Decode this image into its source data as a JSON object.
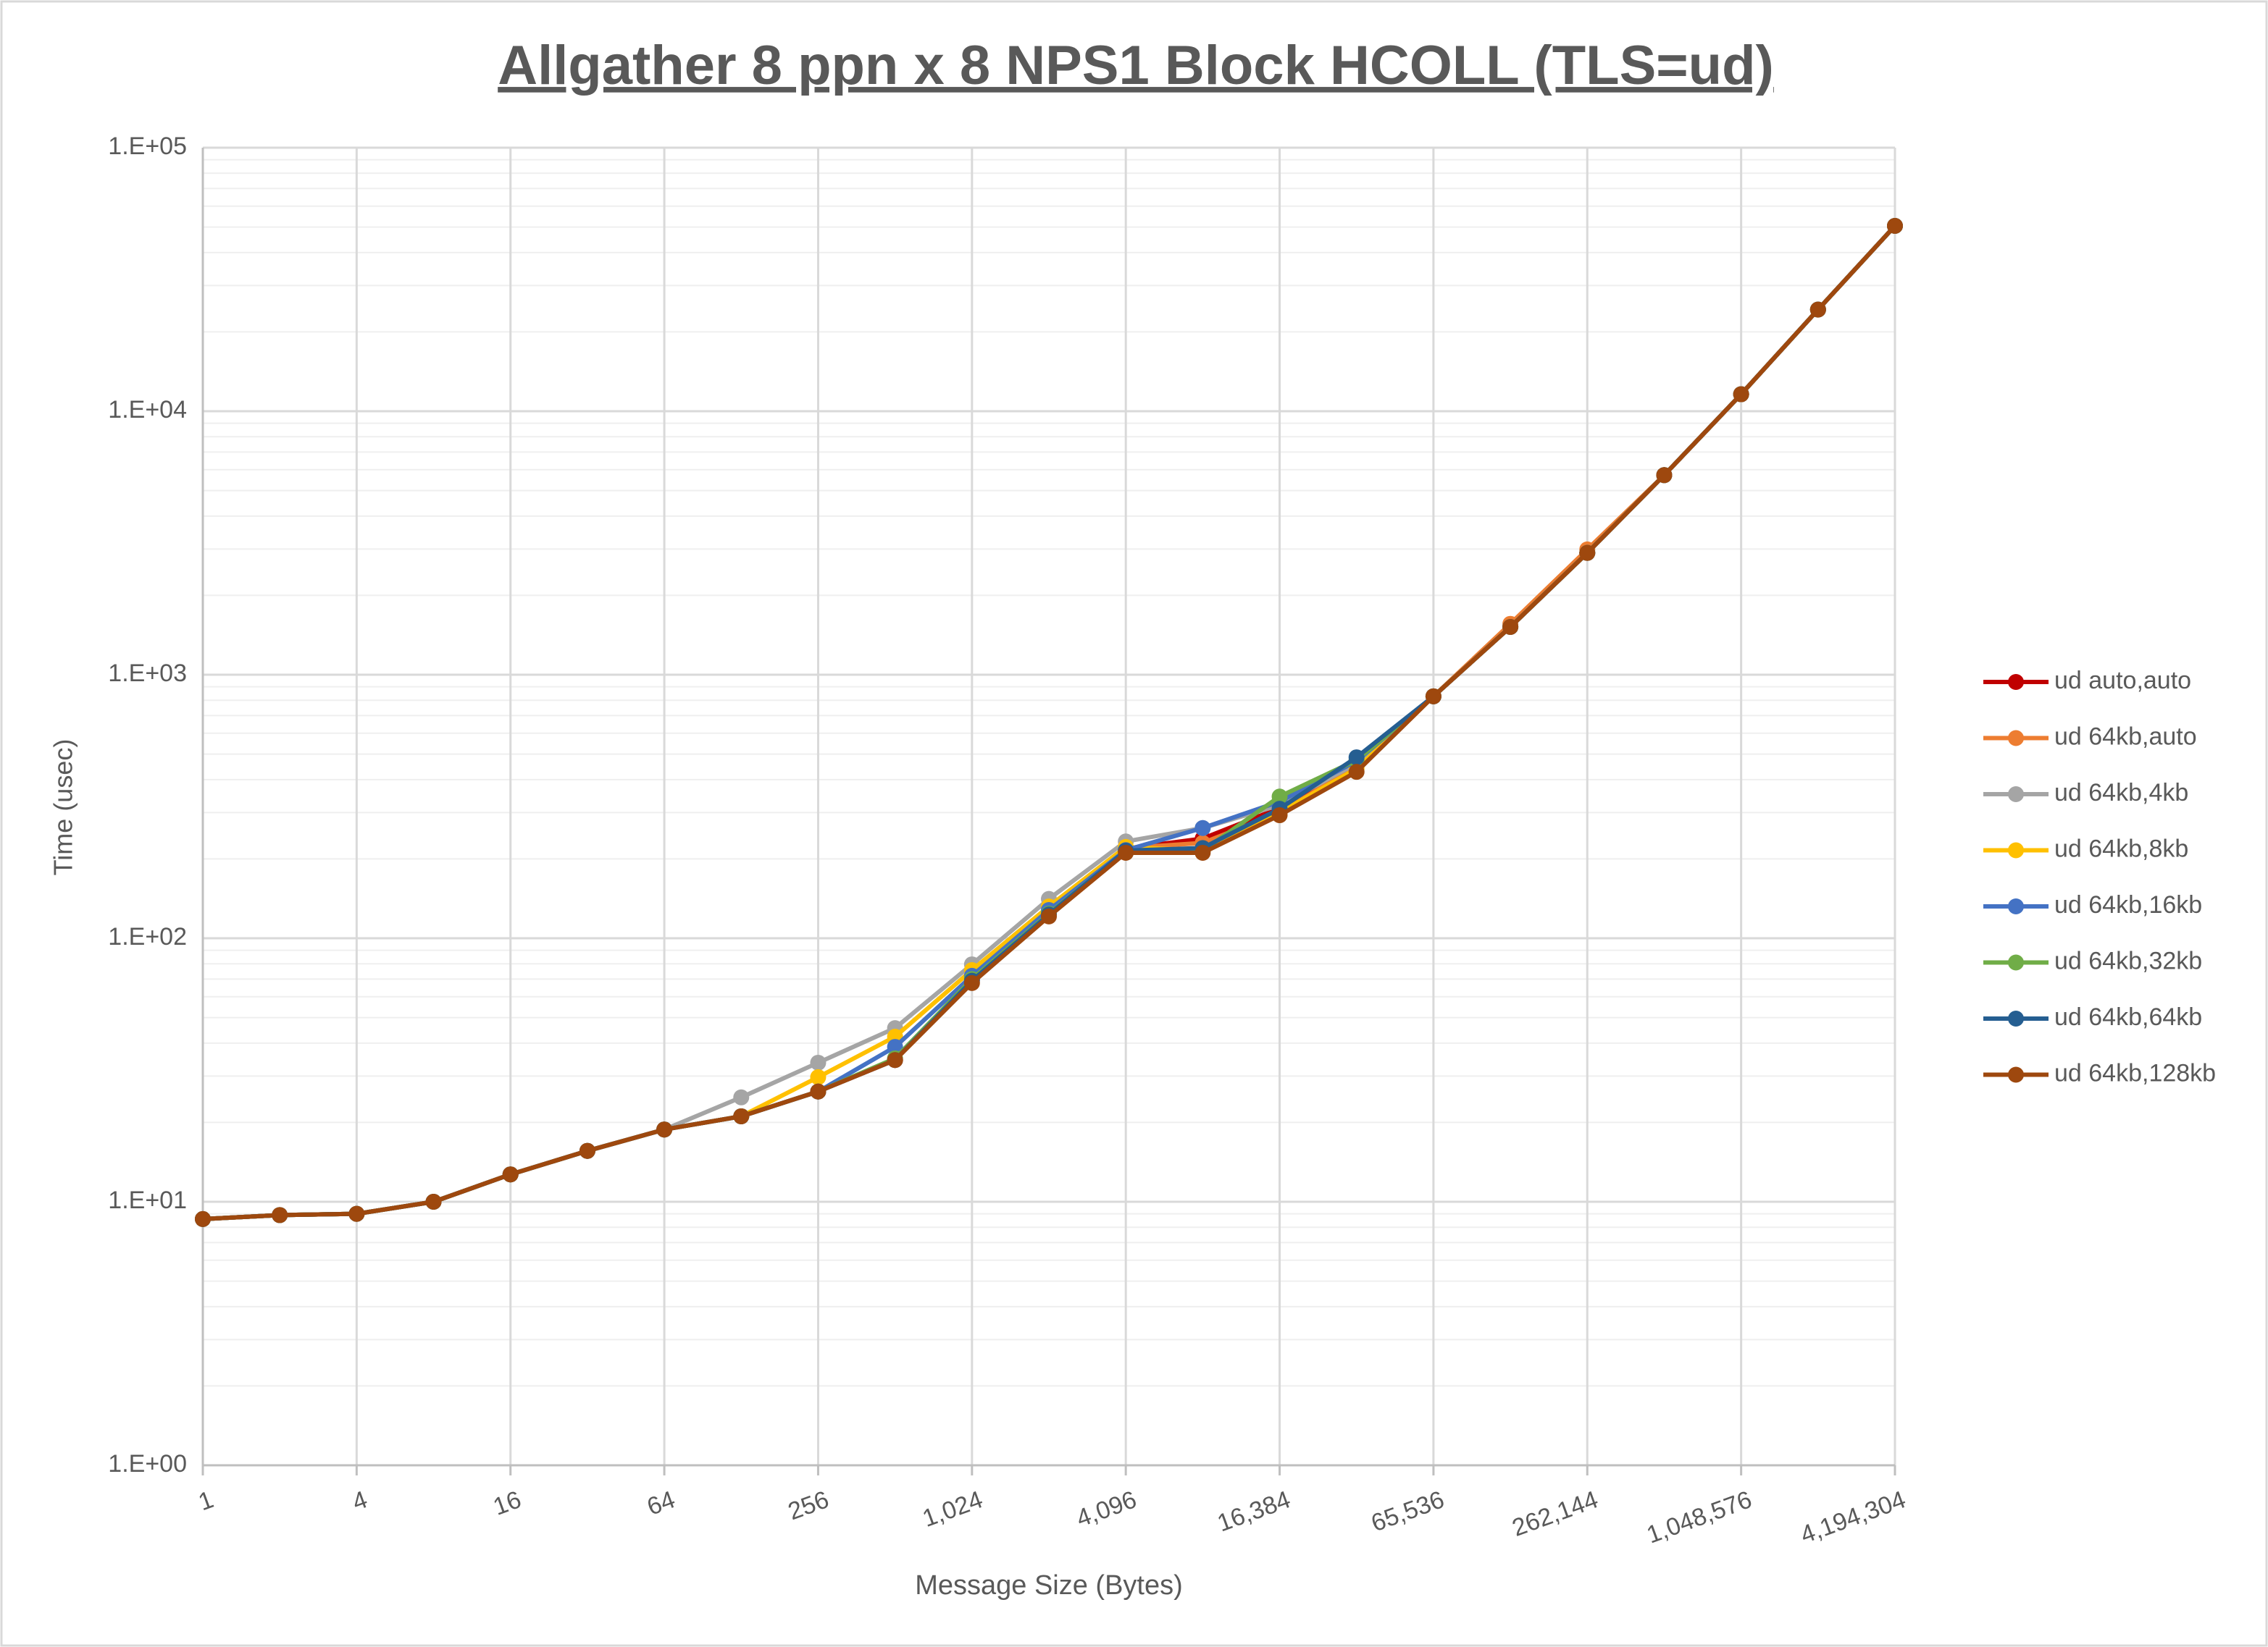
{
  "chart_data": {
    "type": "line",
    "title": "Allgather 8 ppn x 8 NPS1 Block HCOLL (TLS=ud)",
    "x_label": "Message Size (Bytes)",
    "y_label": "Time (usec)",
    "xscale": "log",
    "yscale": "log",
    "grid": true,
    "minor_grid": true,
    "legend": "right",
    "x": [
      1,
      2,
      4,
      8,
      16,
      32,
      64,
      128,
      256,
      512,
      1024,
      2048,
      4096,
      8192,
      16384,
      32768,
      65536,
      131072,
      262144,
      524288,
      1048576,
      2097152,
      4194304
    ],
    "xlim": [
      1,
      4194304
    ],
    "xticks": [
      1,
      4,
      16,
      64,
      256,
      {
        "value": 1024,
        "label": "1,024"
      },
      {
        "value": 4096,
        "label": "4,096"
      },
      {
        "value": 16384,
        "label": "16,384"
      },
      {
        "value": 65536,
        "label": "65,536"
      },
      {
        "value": 262144,
        "label": "262,144"
      },
      {
        "value": 1048576,
        "label": "1,048,576"
      },
      {
        "value": 4194304,
        "label": "4,194,304"
      }
    ],
    "ylim": [
      1,
      100000
    ],
    "yticks": [
      {
        "value": 1,
        "label": "1.E+00"
      },
      {
        "value": 10,
        "label": "1.E+01"
      },
      {
        "value": 100,
        "label": "1.E+02"
      },
      {
        "value": 1000,
        "label": "1.E+03"
      },
      {
        "value": 10000,
        "label": "1.E+04"
      },
      {
        "value": 100000,
        "label": "1.E+05"
      }
    ],
    "series": [
      {
        "name": "ud auto,auto",
        "color": "#c00000",
        "values": [
          8.6,
          8.9,
          9.0,
          10.0,
          12.7,
          15.6,
          18.8,
          21.1,
          26.2,
          34.5,
          70,
          125,
          219,
          239,
          312,
          470,
          828,
          1518,
          2900,
          5720,
          11600,
          24300,
          50500
        ]
      },
      {
        "name": "ud 64kb,auto",
        "color": "#ed7d31",
        "values": [
          8.6,
          8.9,
          9.0,
          10.0,
          12.7,
          15.6,
          18.8,
          21.1,
          26.2,
          34.5,
          70,
          126,
          220,
          230,
          300,
          450,
          828,
          1560,
          2990,
          5720,
          11600,
          24300,
          50500
        ]
      },
      {
        "name": "ud 64kb,4kb",
        "color": "#a5a5a5",
        "values": [
          8.6,
          8.9,
          9.0,
          10.0,
          12.7,
          15.6,
          18.8,
          24.9,
          33.7,
          45.6,
          79.6,
          141,
          233,
          262,
          320,
          460,
          828,
          1518,
          2900,
          5720,
          11600,
          24300,
          50500
        ]
      },
      {
        "name": "ud 64kb,8kb",
        "color": "#ffc000",
        "values": [
          8.6,
          8.9,
          9.0,
          10.0,
          12.7,
          15.6,
          18.8,
          21.1,
          29.7,
          42.3,
          75.7,
          132,
          222,
          215,
          300,
          440,
          828,
          1518,
          2900,
          5720,
          11600,
          24300,
          50500
        ]
      },
      {
        "name": "ud 64kb,16kb",
        "color": "#4472c4",
        "values": [
          8.6,
          8.9,
          9.0,
          10.0,
          12.7,
          15.6,
          18.8,
          21.1,
          26.2,
          38.7,
          72,
          128,
          216,
          262,
          330,
          470,
          828,
          1518,
          2900,
          5720,
          11600,
          24300,
          50500
        ]
      },
      {
        "name": "ud 64kb,32kb",
        "color": "#70ad47",
        "values": [
          8.6,
          8.9,
          9.0,
          10.0,
          12.7,
          15.6,
          18.8,
          21.1,
          26.2,
          35,
          70,
          124,
          214,
          215,
          345,
          474,
          828,
          1518,
          2900,
          5720,
          11600,
          24300,
          50500
        ]
      },
      {
        "name": "ud 64kb,64kb",
        "color": "#255e91",
        "values": [
          8.6,
          8.9,
          9.0,
          10.0,
          12.7,
          15.6,
          18.8,
          21.1,
          26.2,
          34.5,
          69,
          123,
          215,
          220,
          310,
          486,
          828,
          1518,
          2900,
          5720,
          11600,
          24300,
          50500
        ]
      },
      {
        "name": "ud 64kb,128kb",
        "color": "#9e480e",
        "values": [
          8.6,
          8.9,
          9.0,
          10.0,
          12.7,
          15.6,
          18.8,
          21.1,
          26.2,
          34.5,
          67.6,
          121,
          211,
          211,
          293,
          428,
          828,
          1518,
          2900,
          5720,
          11600,
          24300,
          50500
        ]
      }
    ]
  }
}
